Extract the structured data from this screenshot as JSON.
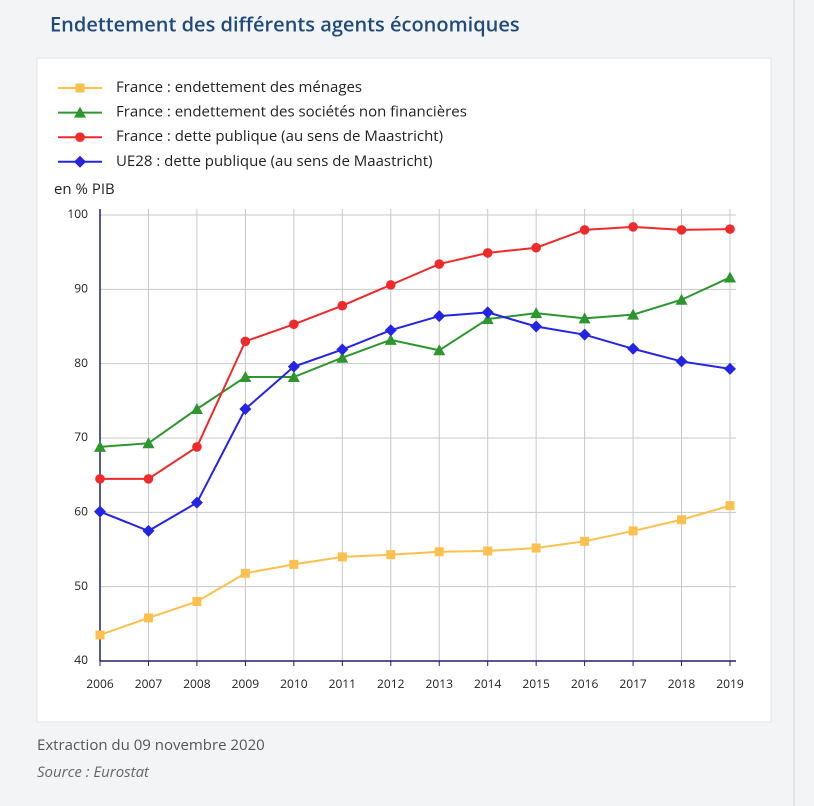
{
  "chart_data": {
    "type": "line",
    "title": "Endettement des différents agents économiques",
    "y_label": "en % PIB",
    "categories": [
      "2006",
      "2007",
      "2008",
      "2009",
      "2010",
      "2011",
      "2012",
      "2013",
      "2014",
      "2015",
      "2016",
      "2017",
      "2018",
      "2019"
    ],
    "series": [
      {
        "name": "France : endettement des ménages",
        "color": "#fcc04f",
        "marker": "square",
        "values": [
          43.5,
          45.8,
          48.0,
          51.8,
          53.0,
          54.0,
          54.3,
          54.7,
          54.8,
          55.2,
          56.1,
          57.5,
          59.0,
          60.9
        ]
      },
      {
        "name": "France : endettement des sociétés non financières",
        "color": "#2e962e",
        "marker": "triangle",
        "values": [
          68.8,
          69.3,
          73.9,
          78.2,
          78.2,
          80.8,
          83.2,
          81.8,
          86.0,
          86.8,
          86.1,
          86.6,
          88.6,
          91.6
        ]
      },
      {
        "name": "France : dette publique (au sens de Maastricht)",
        "color": "#ee2a2a",
        "marker": "circle",
        "values": [
          64.5,
          64.5,
          68.8,
          83.0,
          85.3,
          87.8,
          90.6,
          93.4,
          94.9,
          95.6,
          98.0,
          98.4,
          98.0,
          98.1
        ]
      },
      {
        "name": "UE28 : dette publique (au sens de Maastricht)",
        "color": "#2424e4",
        "marker": "diamond",
        "values": [
          60.1,
          57.5,
          61.3,
          73.9,
          79.6,
          81.9,
          84.5,
          86.4,
          86.9,
          85.0,
          83.9,
          82.0,
          80.3,
          79.3
        ]
      }
    ],
    "ylim": [
      40,
      100
    ],
    "yticks": [
      40,
      50,
      60,
      70,
      80,
      90,
      100
    ],
    "grid": true
  },
  "footer": {
    "extraction": "Extraction du 09 novembre 2020",
    "source": "Source : Eurostat"
  }
}
